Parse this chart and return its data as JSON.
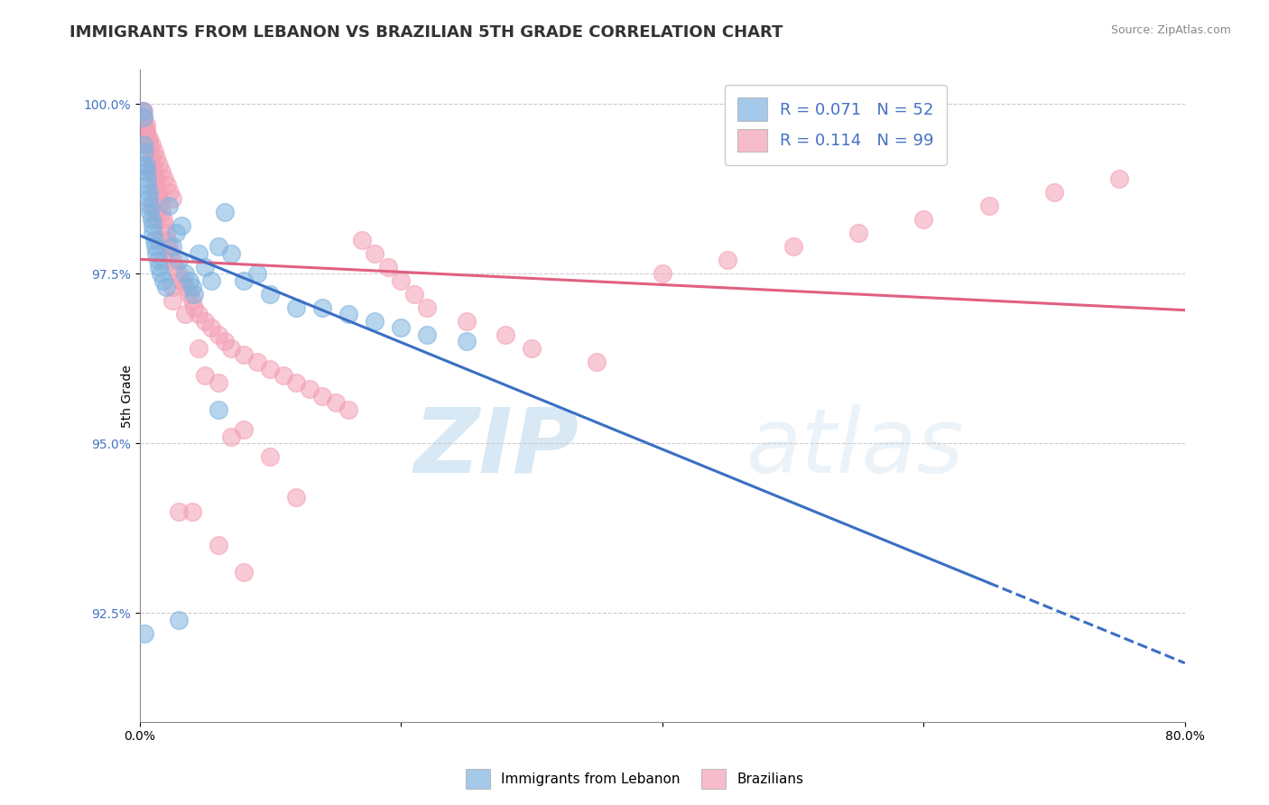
{
  "title": "IMMIGRANTS FROM LEBANON VS BRAZILIAN 5TH GRADE CORRELATION CHART",
  "source_text": "Source: ZipAtlas.com",
  "ylabel": "5th Grade",
  "xlim": [
    0.0,
    0.8
  ],
  "ylim": [
    0.909,
    1.005
  ],
  "xticks": [
    0.0,
    0.2,
    0.4,
    0.6,
    0.8
  ],
  "xtick_labels": [
    "0.0%",
    "",
    "",
    "",
    "80.0%"
  ],
  "yticks": [
    0.925,
    0.95,
    0.975,
    1.0
  ],
  "ytick_labels": [
    "92.5%",
    "95.0%",
    "97.5%",
    "100.0%"
  ],
  "blue_color": "#7fb3e0",
  "pink_color": "#f4a0b5",
  "blue_R": 0.071,
  "blue_N": 52,
  "pink_R": 0.114,
  "pink_N": 99,
  "watermark_zip": "ZIP",
  "watermark_atlas": "atlas",
  "title_fontsize": 13,
  "axis_label_fontsize": 10,
  "tick_fontsize": 10,
  "blue_line_color": "#3a6fc4",
  "pink_line_color": "#e06080",
  "blue_x": [
    0.002,
    0.003,
    0.003,
    0.004,
    0.005,
    0.005,
    0.006,
    0.006,
    0.007,
    0.007,
    0.008,
    0.008,
    0.009,
    0.01,
    0.01,
    0.011,
    0.012,
    0.013,
    0.014,
    0.015,
    0.016,
    0.018,
    0.02,
    0.022,
    0.025,
    0.028,
    0.03,
    0.032,
    0.035,
    0.038,
    0.04,
    0.042,
    0.045,
    0.05,
    0.055,
    0.06,
    0.065,
    0.07,
    0.08,
    0.09,
    0.1,
    0.12,
    0.14,
    0.16,
    0.18,
    0.2,
    0.22,
    0.25,
    0.03,
    0.06,
    0.002,
    0.004
  ],
  "blue_y": [
    0.999,
    0.998,
    0.994,
    0.993,
    0.991,
    0.99,
    0.989,
    0.988,
    0.987,
    0.986,
    0.985,
    0.984,
    0.983,
    0.982,
    0.981,
    0.98,
    0.979,
    0.978,
    0.977,
    0.976,
    0.975,
    0.974,
    0.973,
    0.985,
    0.979,
    0.981,
    0.977,
    0.982,
    0.975,
    0.974,
    0.973,
    0.972,
    0.978,
    0.976,
    0.974,
    0.979,
    0.984,
    0.978,
    0.974,
    0.975,
    0.972,
    0.97,
    0.97,
    0.969,
    0.968,
    0.967,
    0.966,
    0.965,
    0.924,
    0.955,
    0.991,
    0.922
  ],
  "pink_x": [
    0.002,
    0.003,
    0.004,
    0.005,
    0.006,
    0.007,
    0.008,
    0.009,
    0.01,
    0.011,
    0.012,
    0.013,
    0.014,
    0.015,
    0.016,
    0.017,
    0.018,
    0.019,
    0.02,
    0.021,
    0.022,
    0.023,
    0.025,
    0.027,
    0.03,
    0.032,
    0.035,
    0.038,
    0.04,
    0.042,
    0.045,
    0.05,
    0.055,
    0.06,
    0.065,
    0.07,
    0.08,
    0.09,
    0.1,
    0.11,
    0.12,
    0.13,
    0.14,
    0.15,
    0.16,
    0.17,
    0.18,
    0.19,
    0.2,
    0.21,
    0.22,
    0.25,
    0.28,
    0.3,
    0.35,
    0.4,
    0.45,
    0.5,
    0.55,
    0.6,
    0.65,
    0.7,
    0.75,
    0.003,
    0.005,
    0.007,
    0.009,
    0.011,
    0.013,
    0.015,
    0.017,
    0.019,
    0.021,
    0.023,
    0.025,
    0.003,
    0.005,
    0.007,
    0.009,
    0.011,
    0.013,
    0.015,
    0.01,
    0.012,
    0.018,
    0.025,
    0.035,
    0.045,
    0.06,
    0.08,
    0.1,
    0.12,
    0.05,
    0.07,
    0.03,
    0.025,
    0.04,
    0.06,
    0.08
  ],
  "pink_y": [
    0.999,
    0.998,
    0.997,
    0.996,
    0.995,
    0.994,
    0.993,
    0.992,
    0.991,
    0.99,
    0.989,
    0.988,
    0.987,
    0.986,
    0.985,
    0.984,
    0.983,
    0.982,
    0.981,
    0.98,
    0.979,
    0.978,
    0.977,
    0.976,
    0.975,
    0.974,
    0.973,
    0.972,
    0.971,
    0.97,
    0.969,
    0.968,
    0.967,
    0.966,
    0.965,
    0.964,
    0.963,
    0.962,
    0.961,
    0.96,
    0.959,
    0.958,
    0.957,
    0.956,
    0.955,
    0.98,
    0.978,
    0.976,
    0.974,
    0.972,
    0.97,
    0.968,
    0.966,
    0.964,
    0.962,
    0.975,
    0.977,
    0.979,
    0.981,
    0.983,
    0.985,
    0.987,
    0.989,
    0.997,
    0.996,
    0.995,
    0.994,
    0.993,
    0.992,
    0.991,
    0.99,
    0.989,
    0.988,
    0.987,
    0.986,
    0.999,
    0.997,
    0.994,
    0.99,
    0.987,
    0.984,
    0.98,
    0.985,
    0.983,
    0.977,
    0.973,
    0.969,
    0.964,
    0.959,
    0.952,
    0.948,
    0.942,
    0.96,
    0.951,
    0.94,
    0.971,
    0.94,
    0.935,
    0.931
  ]
}
